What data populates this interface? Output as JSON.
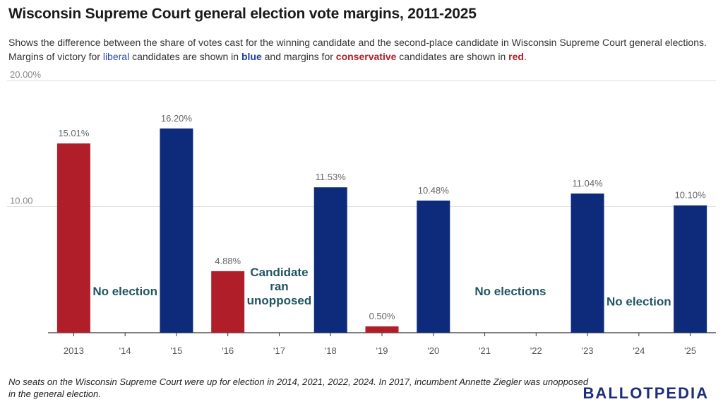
{
  "title": "Wisconsin Supreme Court general election vote margins, 2011-2025",
  "subtitle": {
    "part1": "Shows the difference between the share of votes cast for the winning candidate and the second-place candidate in Wisconsin Supreme Court general elections. Margins of victory for ",
    "liberal": "liberal",
    "part2": " candidates are shown in ",
    "blue": "blue",
    "part3": " and margins for ",
    "conservative": "conservative",
    "part4": " candidates are shown in ",
    "red": "red",
    "part5": "."
  },
  "note": "No seats on the Wisconsin Supreme Court were up for election in 2014, 2021, 2022, 2024. In 2017, incumbent Annette Ziegler was unopposed in the general election.",
  "logo": {
    "part1": "BALLOT",
    "part2": "PEDIA"
  },
  "colors": {
    "liberal": "#0e2a7a",
    "conservative": "#b01e2a",
    "annotation": "#1f5560",
    "grid": "#dddddd",
    "axis": "#333333"
  },
  "chart_data": {
    "type": "bar",
    "categories": [
      "2013",
      "'14",
      "'15",
      "'16",
      "'17",
      "'18",
      "'19",
      "'20",
      "'21",
      "'22",
      "'23",
      "'24",
      "'25"
    ],
    "values": [
      15.01,
      null,
      16.2,
      4.88,
      null,
      11.53,
      0.5,
      10.48,
      null,
      null,
      11.04,
      null,
      10.1
    ],
    "value_labels": [
      "15.01%",
      "",
      "16.20%",
      "4.88%",
      "",
      "11.53%",
      "0.50%",
      "10.48%",
      "",
      "",
      "11.04%",
      "",
      "10.10%"
    ],
    "parties": [
      "conservative",
      null,
      "liberal",
      "conservative",
      null,
      "liberal",
      "conservative",
      "liberal",
      null,
      null,
      "liberal",
      null,
      "liberal"
    ],
    "yticks": [
      10,
      20
    ],
    "ytick_labels": [
      "10.00",
      "20.00%"
    ],
    "ylim": [
      0,
      20
    ],
    "grid": true,
    "annotations": [
      {
        "text": [
          "No election"
        ],
        "category_index": 1,
        "y": 3.3
      },
      {
        "text": [
          "Candidate",
          "ran",
          "unopposed"
        ],
        "category_index": 4,
        "y": 3.7
      },
      {
        "text": [
          "No elections"
        ],
        "category_index": 8.5,
        "y": 3.3
      },
      {
        "text": [
          "No election"
        ],
        "category_index": 11,
        "y": 2.5
      }
    ]
  }
}
